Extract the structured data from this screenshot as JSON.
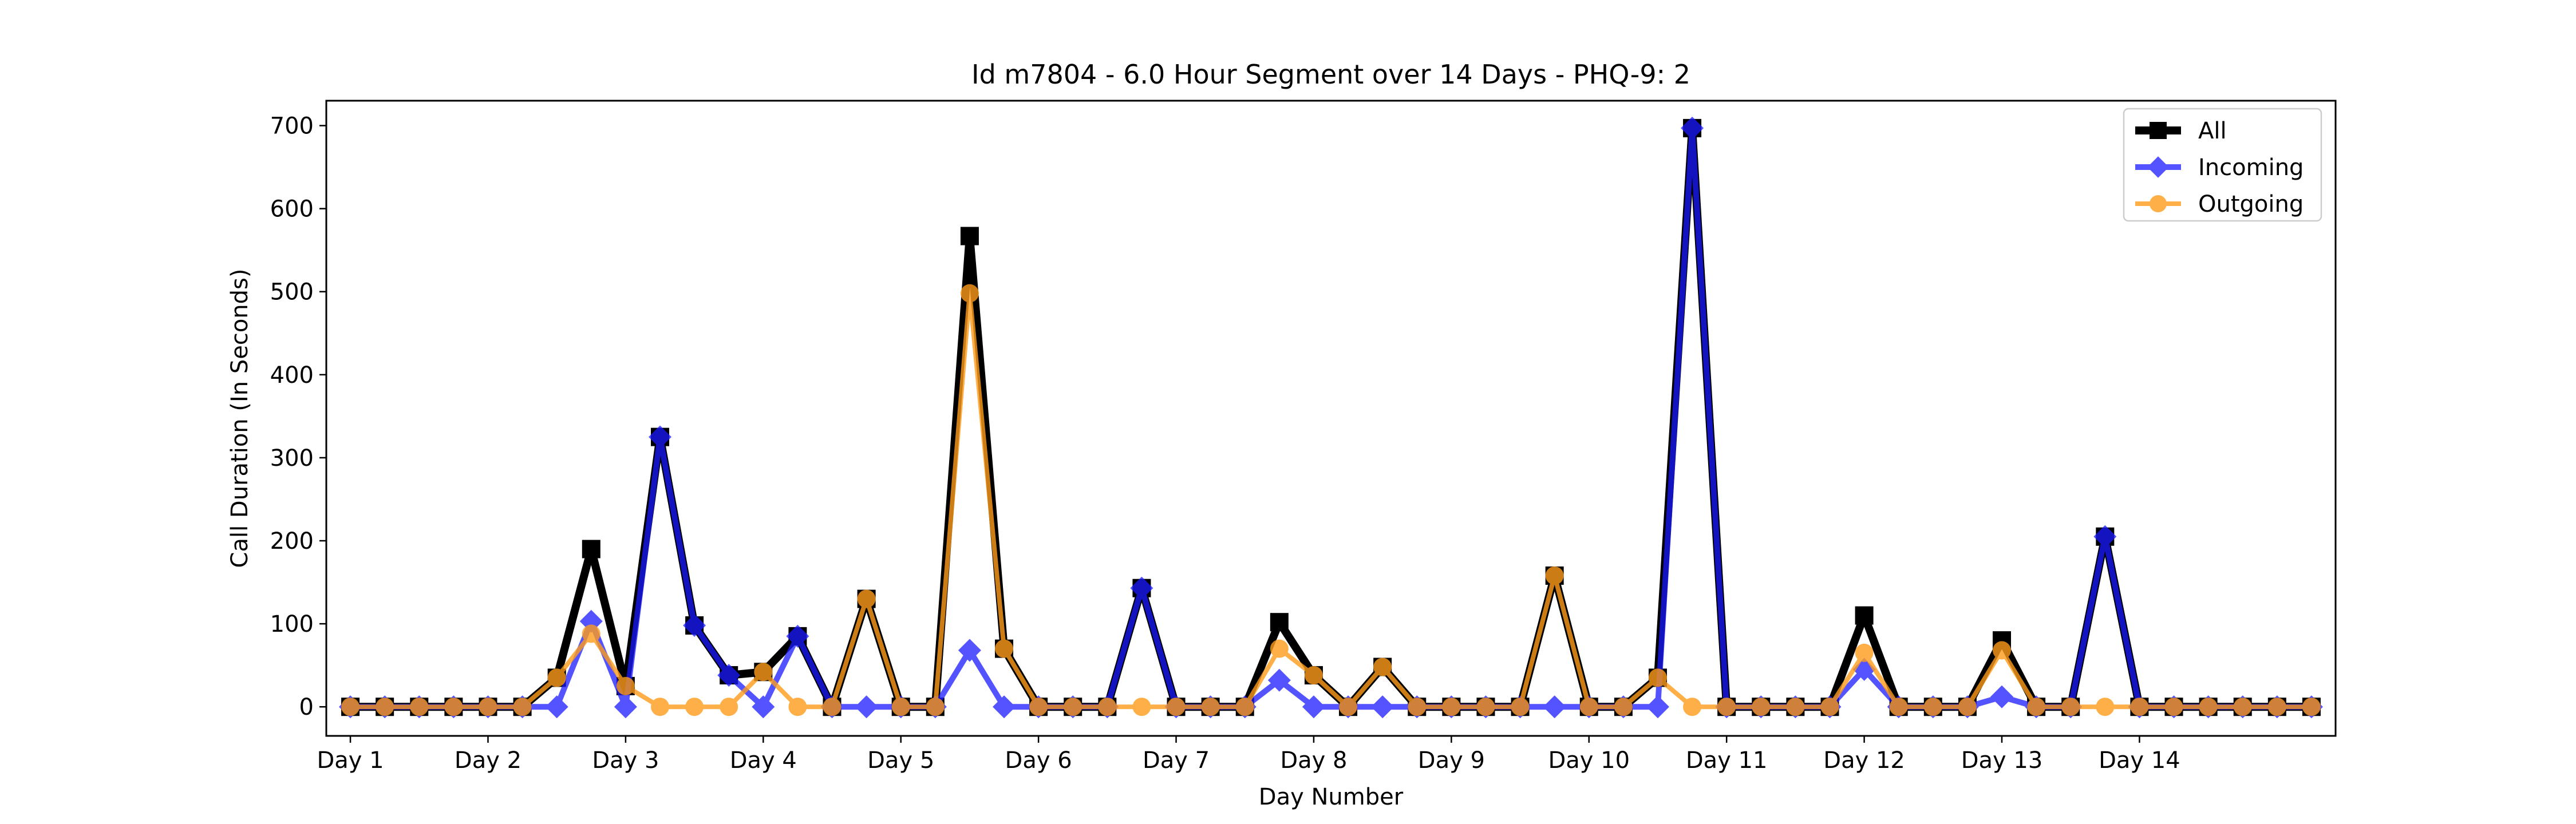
{
  "chart_data": {
    "type": "line",
    "title": "Id m7804 - 6.0 Hour Segment over 14 Days - PHQ-9: 2",
    "xlabel": "Day Number",
    "ylabel": "Call Duration (In Seconds)",
    "xlim": [
      -0.7,
      57.7
    ],
    "ylim": [
      -35,
      730
    ],
    "x_ticks": [
      {
        "pos": 0,
        "label": "Day 1"
      },
      {
        "pos": 4,
        "label": "Day 2"
      },
      {
        "pos": 8,
        "label": "Day 3"
      },
      {
        "pos": 12,
        "label": "Day 4"
      },
      {
        "pos": 16,
        "label": "Day 5"
      },
      {
        "pos": 20,
        "label": "Day 6"
      },
      {
        "pos": 24,
        "label": "Day 7"
      },
      {
        "pos": 28,
        "label": "Day 8"
      },
      {
        "pos": 32,
        "label": "Day 9"
      },
      {
        "pos": 36,
        "label": "Day 10"
      },
      {
        "pos": 40,
        "label": "Day 11"
      },
      {
        "pos": 44,
        "label": "Day 12"
      },
      {
        "pos": 48,
        "label": "Day 13"
      },
      {
        "pos": 52,
        "label": "Day 14"
      }
    ],
    "y_ticks": [
      0,
      100,
      200,
      300,
      400,
      500,
      600,
      700
    ],
    "legend_position": "top-right",
    "series": [
      {
        "name": "All",
        "color": "#000000",
        "marker": "square",
        "values": [
          0,
          0,
          0,
          0,
          0,
          0,
          35,
          190,
          25,
          325,
          98,
          38,
          42,
          85,
          0,
          130,
          0,
          0,
          567,
          70,
          0,
          0,
          0,
          143,
          0,
          0,
          0,
          102,
          38,
          0,
          48,
          0,
          0,
          0,
          0,
          158,
          0,
          0,
          35,
          697,
          0,
          0,
          0,
          0,
          110,
          0,
          0,
          0,
          80,
          0,
          0,
          205,
          0,
          0,
          0,
          0,
          0,
          0
        ]
      },
      {
        "name": "Incoming",
        "color": "#1a1aff",
        "marker": "diamond",
        "values": [
          0,
          0,
          0,
          0,
          0,
          0,
          0,
          103,
          0,
          325,
          98,
          38,
          0,
          85,
          0,
          0,
          0,
          0,
          68,
          0,
          0,
          0,
          0,
          143,
          0,
          0,
          0,
          32,
          0,
          0,
          0,
          0,
          0,
          0,
          0,
          0,
          0,
          0,
          0,
          697,
          0,
          0,
          0,
          0,
          45,
          0,
          0,
          0,
          12,
          0,
          0,
          205,
          0,
          0,
          0,
          0,
          0,
          0
        ]
      },
      {
        "name": "Outgoing",
        "color": "#ff9c1a",
        "marker": "circle",
        "values": [
          0,
          0,
          0,
          0,
          0,
          0,
          35,
          88,
          25,
          0,
          0,
          0,
          42,
          0,
          0,
          130,
          0,
          0,
          498,
          70,
          0,
          0,
          0,
          0,
          0,
          0,
          0,
          70,
          38,
          0,
          48,
          0,
          0,
          0,
          0,
          158,
          0,
          0,
          35,
          0,
          0,
          0,
          0,
          0,
          65,
          0,
          0,
          0,
          68,
          0,
          0,
          0,
          0,
          0,
          0,
          0,
          0,
          0
        ]
      }
    ]
  }
}
